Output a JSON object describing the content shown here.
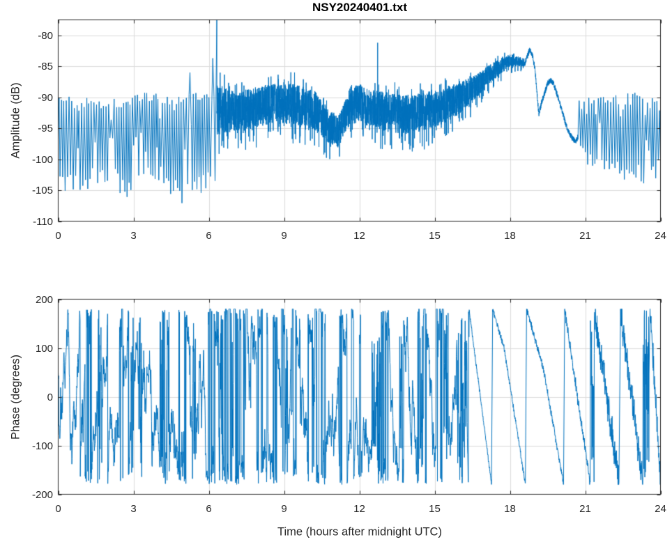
{
  "title": "NSY20240401.txt",
  "colors": {
    "line": "#0072BD",
    "axis": "#262626",
    "grid": "#dbdbdb",
    "tick_text": "#262626",
    "title_text": "#000000",
    "background": "#ffffff"
  },
  "chart_data": [
    {
      "type": "line",
      "title": "NSY20240401.txt",
      "ylabel": "Amplitude (dB)",
      "xlabel": "",
      "xlim": [
        0,
        24
      ],
      "ylim": [
        -110,
        -77.5
      ],
      "xticks": [
        0,
        3,
        6,
        9,
        12,
        15,
        18,
        21,
        24
      ],
      "yticks": [
        -110,
        -105,
        -100,
        -95,
        -90,
        -85,
        -80
      ],
      "grid": true,
      "line_color": "#0072BD",
      "signal": {
        "seed": 20240401,
        "oscillation_segments": [
          {
            "t0": 0,
            "t1": 6.25,
            "period": 0.095,
            "top_keypoints": [
              [
                0,
                -90.5
              ],
              [
                1,
                -90.8
              ],
              [
                2,
                -91.0
              ],
              [
                3,
                -90.5
              ],
              [
                3.9,
                -89.8
              ],
              [
                4.6,
                -90.5
              ],
              [
                5.5,
                -90.2
              ],
              [
                6.25,
                -89.8
              ]
            ],
            "bottom_keypoints": [
              [
                0,
                -103
              ],
              [
                0.9,
                -104
              ],
              [
                1.6,
                -102
              ],
              [
                2.4,
                -103.5
              ],
              [
                3.0,
                -105.5
              ],
              [
                3.5,
                -100
              ],
              [
                4.2,
                -103
              ],
              [
                4.9,
                -105.5
              ],
              [
                5.6,
                -104
              ],
              [
                6.25,
                -103.5
              ]
            ],
            "top_jitter": 0.9,
            "bottom_jitter": 1.8
          },
          {
            "t0": 20.72,
            "t1": 24,
            "period": 0.096,
            "top_keypoints": [
              [
                20.72,
                -91.5
              ],
              [
                21.5,
                -90.5
              ],
              [
                22.5,
                -90.3
              ],
              [
                23.5,
                -90.0
              ],
              [
                24,
                -89.8
              ]
            ],
            "bottom_keypoints": [
              [
                20.72,
                -98.5
              ],
              [
                21.3,
                -100
              ],
              [
                22,
                -100.5
              ],
              [
                22.6,
                -101.8
              ],
              [
                23.2,
                -102.3
              ],
              [
                23.6,
                -102.5
              ],
              [
                24,
                -101
              ]
            ],
            "top_jitter": 0.9,
            "bottom_jitter": 1.6
          }
        ],
        "band_segments": [
          {
            "t0": 6.32,
            "t1": 18.6,
            "dt": 0.0035,
            "center_keypoints": [
              [
                6.32,
                -92.0
              ],
              [
                7.0,
                -92.3
              ],
              [
                7.5,
                -92.0
              ],
              [
                8.3,
                -91.2
              ],
              [
                9.3,
                -91.0
              ],
              [
                10.2,
                -92.0
              ],
              [
                10.8,
                -94.8
              ],
              [
                11.15,
                -95.6
              ],
              [
                11.5,
                -92.5
              ],
              [
                11.9,
                -90.8
              ],
              [
                12.4,
                -91.8
              ],
              [
                13.0,
                -92.3
              ],
              [
                13.8,
                -92.8
              ],
              [
                14.6,
                -92.3
              ],
              [
                15.3,
                -91.5
              ],
              [
                15.9,
                -90.3
              ],
              [
                16.5,
                -88.8
              ],
              [
                17.1,
                -86.6
              ],
              [
                17.6,
                -85.0
              ],
              [
                17.95,
                -84.3
              ],
              [
                18.35,
                -84.2
              ],
              [
                18.6,
                -84.5
              ]
            ],
            "spread_keypoints": [
              [
                6.32,
                4.2
              ],
              [
                7.0,
                3.2
              ],
              [
                8.0,
                3.3
              ],
              [
                10.3,
                3.2
              ],
              [
                11.15,
                2.4
              ],
              [
                12.0,
                2.9
              ],
              [
                13.0,
                3.2
              ],
              [
                14.6,
                3.1
              ],
              [
                15.9,
                2.6
              ],
              [
                16.5,
                2.1
              ],
              [
                17.1,
                1.6
              ],
              [
                17.7,
                1.2
              ],
              [
                18.1,
                0.9
              ],
              [
                18.6,
                0.7
              ]
            ]
          }
        ],
        "line_segments": [
          {
            "dt": 0.004,
            "jitter": 0.45,
            "keypoints": [
              [
                18.6,
                -84.5
              ],
              [
                18.7,
                -83.3
              ],
              [
                18.78,
                -82.4
              ],
              [
                18.88,
                -82.9
              ],
              [
                19.0,
                -85.5
              ],
              [
                19.15,
                -92.7
              ],
              [
                19.25,
                -91.0
              ],
              [
                19.35,
                -89.8
              ],
              [
                19.5,
                -87.8
              ],
              [
                19.62,
                -87.2
              ],
              [
                19.75,
                -87.9
              ],
              [
                19.9,
                -89.8
              ],
              [
                20.1,
                -92.5
              ],
              [
                20.3,
                -95.3
              ],
              [
                20.5,
                -96.7
              ],
              [
                20.62,
                -97.1
              ],
              [
                20.72,
                -96.3
              ]
            ]
          }
        ],
        "spikes": [
          {
            "t": 5.25,
            "value": -86.0
          },
          {
            "t": 6.16,
            "value": -83.7
          },
          {
            "t": 6.32,
            "value": -77.3
          },
          {
            "t": 12.73,
            "value": -81.2
          }
        ]
      }
    },
    {
      "type": "line",
      "title": "",
      "ylabel": "Phase (degrees)",
      "xlabel": "Time (hours after midnight UTC)",
      "xlim": [
        0,
        24
      ],
      "ylim": [
        -200,
        200
      ],
      "xticks": [
        0,
        3,
        6,
        9,
        12,
        15,
        18,
        21,
        24
      ],
      "yticks": [
        -200,
        -100,
        0,
        100,
        200
      ],
      "grid": true,
      "line_color": "#0072BD",
      "signal": {
        "seed": 401,
        "clip": 180,
        "random_walk": {
          "t0": 0,
          "t1": 16.37,
          "dt": 0.008,
          "sigma": 30,
          "kick_prob": 0.02,
          "kick_max": 300,
          "peg_prob": 0.012,
          "start": 40
        },
        "burst_intervals": [
          [
            1.55,
            1.75
          ],
          [
            2.9,
            3.02
          ],
          [
            3.2,
            3.35
          ],
          [
            4.05,
            4.2
          ],
          [
            4.32,
            4.45
          ],
          [
            5.35,
            5.5
          ],
          [
            6.35,
            6.55
          ],
          [
            6.9,
            7.0
          ],
          [
            9.05,
            9.15
          ],
          [
            10.1,
            10.2
          ],
          [
            12.5,
            12.85
          ],
          [
            13.6,
            13.75
          ],
          [
            14.42,
            14.56
          ],
          [
            15.35,
            15.55
          ],
          [
            15.9,
            16.08
          ],
          [
            16.15,
            16.3
          ],
          [
            21.2,
            21.36
          ],
          [
            23.3,
            23.55
          ]
        ],
        "ramps": [
          {
            "t0": 16.37,
            "t1": 17.27,
            "from": 180,
            "to": -180,
            "noise": 3
          },
          {
            "t0": 17.31,
            "t1": 18.62,
            "from": 180,
            "to": -180,
            "noise": 4,
            "mid": [
              0.35,
              100
            ]
          },
          {
            "t0": 18.66,
            "t1": 20.14,
            "from": 180,
            "to": -180,
            "noise": 5,
            "mid": [
              0.45,
              60
            ]
          },
          {
            "t0": 20.18,
            "t1": 21.2,
            "from": 180,
            "to": -180,
            "noise": 9
          },
          {
            "t0": 21.36,
            "t1": 22.35,
            "from": 180,
            "to": -180,
            "noise": 22
          },
          {
            "t0": 22.4,
            "t1": 23.3,
            "from": 180,
            "to": -180,
            "noise": 22
          },
          {
            "t0": 23.58,
            "t1": 24,
            "from": 180,
            "to": -180,
            "noise": 22
          }
        ]
      }
    }
  ]
}
